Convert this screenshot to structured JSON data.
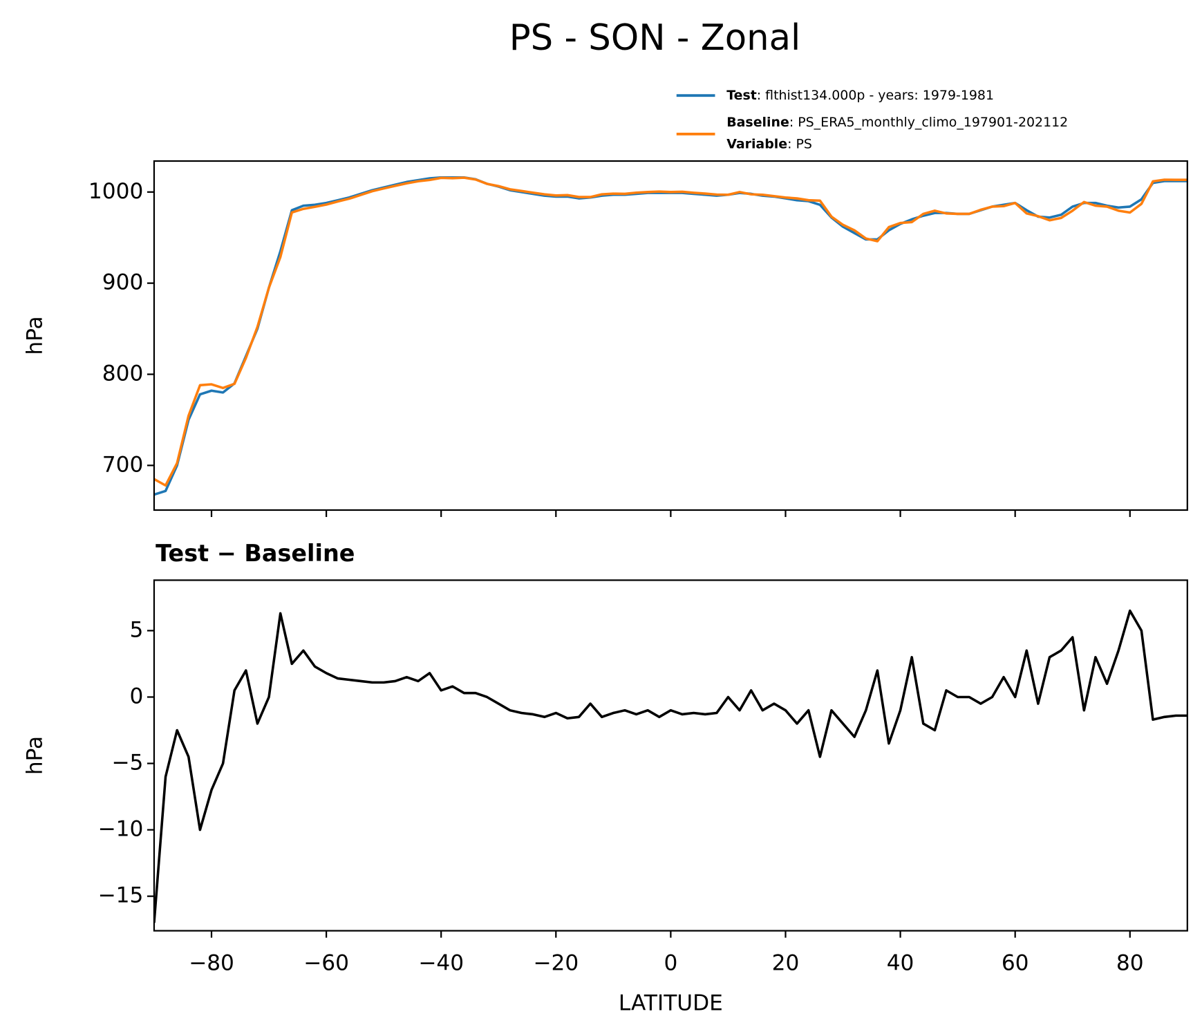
{
  "title": "PS - SON - Zonal",
  "chart_data": [
    {
      "type": "line",
      "ylabel": "hPa",
      "x": [
        -90,
        -88,
        -86,
        -84,
        -82,
        -80,
        -78,
        -76,
        -74,
        -72,
        -70,
        -68,
        -66,
        -64,
        -62,
        -60,
        -58,
        -56,
        -54,
        -52,
        -50,
        -48,
        -46,
        -44,
        -42,
        -40,
        -38,
        -36,
        -34,
        -32,
        -30,
        -28,
        -26,
        -24,
        -22,
        -20,
        -18,
        -16,
        -14,
        -12,
        -10,
        -8,
        -6,
        -4,
        -2,
        0,
        2,
        4,
        6,
        8,
        10,
        12,
        14,
        16,
        18,
        20,
        22,
        24,
        26,
        28,
        30,
        32,
        34,
        36,
        38,
        40,
        42,
        44,
        46,
        48,
        50,
        52,
        54,
        56,
        58,
        60,
        62,
        64,
        66,
        68,
        70,
        72,
        74,
        76,
        78,
        80,
        82,
        84,
        86,
        88,
        90
      ],
      "series": [
        {
          "name": "Test",
          "label": ": flthist134.000p - years: 1979-1981",
          "color": "#1f77b4",
          "values": [
            668,
            672,
            700,
            750,
            778,
            782,
            780,
            790,
            820,
            850,
            895,
            935,
            980,
            985,
            986,
            988,
            991,
            994,
            998,
            1002,
            1005,
            1008,
            1011,
            1013,
            1015,
            1016,
            1016,
            1016,
            1014,
            1009,
            1006,
            1002,
            1000,
            998,
            996,
            995,
            995,
            993,
            994,
            996,
            997,
            997,
            998,
            999,
            999,
            999,
            999,
            998,
            997,
            996,
            997,
            999,
            998,
            996,
            995,
            993,
            991,
            990,
            986,
            972,
            962,
            955,
            948,
            948,
            958,
            965,
            970,
            974,
            977,
            977,
            976,
            976,
            980,
            984,
            986,
            988,
            980,
            973,
            972,
            975,
            984,
            988,
            988,
            985,
            983,
            984,
            992,
            1010,
            1012,
            1012,
            1012
          ]
        },
        {
          "name": "Baseline",
          "label": ": PS_ERA5_monthly_climo_197901-202112",
          "color": "#ff7f0e",
          "values": [
            685,
            678,
            702.5,
            754.5,
            788,
            789,
            785,
            789.5,
            818,
            852,
            895,
            928.7,
            977.5,
            981.5,
            983.7,
            986.2,
            989.6,
            992.7,
            996.8,
            1000.9,
            1003.9,
            1006.8,
            1009.5,
            1011.8,
            1013.2,
            1015.5,
            1015.2,
            1015.7,
            1013.7,
            1009,
            1006.5,
            1003,
            1001.2,
            999.3,
            997.5,
            996.2,
            996.6,
            994.5,
            994.5,
            997.5,
            998.2,
            998,
            999.3,
            1000,
            1000.5,
            1000,
            1000.3,
            999.2,
            998.3,
            997.2,
            997,
            1000,
            997.5,
            997,
            995.5,
            994,
            993,
            991,
            990.5,
            973,
            964,
            958,
            949,
            946,
            961.5,
            966,
            967,
            976,
            979.5,
            976.5,
            976,
            976,
            980.5,
            984,
            984.5,
            988,
            976.5,
            973.5,
            969,
            971.5,
            979.5,
            989,
            985,
            984,
            979.5,
            977.5,
            987,
            1011.7,
            1013.5,
            1013.4,
            1013.4
          ]
        }
      ],
      "legend_extra": {
        "name": "Variable",
        "label": ": PS"
      },
      "xlim": [
        -90,
        90
      ],
      "xticks": [
        -80,
        -60,
        -40,
        -20,
        0,
        20,
        40,
        60,
        80
      ],
      "ylim": [
        651,
        1034
      ],
      "yticks": [
        700,
        800,
        900,
        1000
      ]
    },
    {
      "type": "line",
      "title": "Test − Baseline",
      "ylabel": "hPa",
      "xlabel": "LATITUDE",
      "x": [
        -90,
        -88,
        -86,
        -84,
        -82,
        -80,
        -78,
        -76,
        -74,
        -72,
        -70,
        -68,
        -66,
        -64,
        -62,
        -60,
        -58,
        -56,
        -54,
        -52,
        -50,
        -48,
        -46,
        -44,
        -42,
        -40,
        -38,
        -36,
        -34,
        -32,
        -30,
        -28,
        -26,
        -24,
        -22,
        -20,
        -18,
        -16,
        -14,
        -12,
        -10,
        -8,
        -6,
        -4,
        -2,
        0,
        2,
        4,
        6,
        8,
        10,
        12,
        14,
        16,
        18,
        20,
        22,
        24,
        26,
        28,
        30,
        32,
        34,
        36,
        38,
        40,
        42,
        44,
        46,
        48,
        50,
        52,
        54,
        56,
        58,
        60,
        62,
        64,
        66,
        68,
        70,
        72,
        74,
        76,
        78,
        80,
        82,
        84,
        86,
        88,
        90
      ],
      "series": [
        {
          "color": "#000000",
          "values": [
            -17,
            -6,
            -2.5,
            -4.5,
            -10,
            -7,
            -5,
            0.5,
            2,
            -2,
            0,
            6.3,
            2.5,
            3.5,
            2.3,
            1.8,
            1.4,
            1.3,
            1.2,
            1.1,
            1.1,
            1.2,
            1.5,
            1.2,
            1.8,
            0.5,
            0.8,
            0.3,
            0.3,
            0,
            -0.5,
            -1,
            -1.2,
            -1.3,
            -1.5,
            -1.2,
            -1.6,
            -1.5,
            -0.5,
            -1.5,
            -1.2,
            -1,
            -1.3,
            -1,
            -1.5,
            -1,
            -1.3,
            -1.2,
            -1.3,
            -1.2,
            0,
            -1,
            0.5,
            -1,
            -0.5,
            -1,
            -2,
            -1,
            -4.5,
            -1,
            -2,
            -3,
            -1,
            2,
            -3.5,
            -1,
            3,
            -2,
            -2.5,
            0.5,
            0,
            0,
            -0.5,
            0,
            1.5,
            0,
            3.5,
            -0.5,
            3,
            3.5,
            4.5,
            -1,
            3,
            1,
            3.5,
            6.5,
            5,
            -1.7,
            -1.5,
            -1.4,
            -1.4
          ]
        }
      ],
      "xlim": [
        -90,
        90
      ],
      "xticks": [
        {
          "value": -80,
          "label": "−80"
        },
        {
          "value": -60,
          "label": "−60"
        },
        {
          "value": -40,
          "label": "−40"
        },
        {
          "value": -20,
          "label": "−20"
        },
        0,
        20,
        40,
        60,
        80
      ],
      "ylim": [
        -17.6,
        8.8
      ],
      "yticks": [
        {
          "value": -15,
          "label": "−15"
        },
        {
          "value": -10,
          "label": "−10"
        },
        {
          "value": -5,
          "label": "−5"
        },
        0,
        5
      ]
    }
  ]
}
